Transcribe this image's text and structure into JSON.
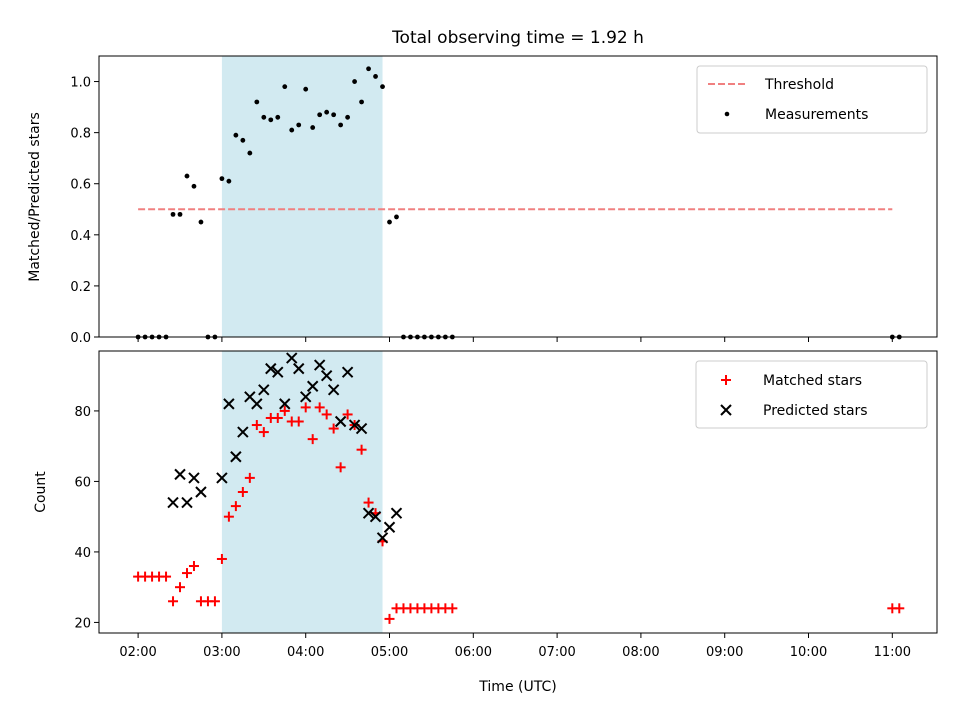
{
  "figure": {
    "title": "Total observing time = 1.92 h",
    "xlabel": "Time (UTC)"
  },
  "colors": {
    "threshold": "#f08080",
    "measurements": "#000000",
    "matched": "#ff0000",
    "predicted": "#000000",
    "shade": "#add8e6"
  },
  "chart_data": [
    {
      "type": "scatter",
      "ylabel": "Matched/Predicted stars",
      "xlim": [
        "01:32",
        "11:32"
      ],
      "ylim": [
        0,
        1.1
      ],
      "yticks": [
        0.0,
        0.2,
        0.4,
        0.6,
        0.8,
        1.0
      ],
      "ytick_labels": [
        "0.0",
        "0.2",
        "0.4",
        "0.6",
        "0.8",
        "1.0"
      ],
      "xticks": [
        "02:00",
        "03:00",
        "04:00",
        "05:00",
        "06:00",
        "07:00",
        "08:00",
        "09:00",
        "10:00",
        "11:00"
      ],
      "grid": false,
      "legend_position": "top-right",
      "shaded_interval": [
        "03:00",
        "04:55"
      ],
      "lines": [
        {
          "name": "Threshold",
          "style": "dashed",
          "x": [
            "02:00",
            "11:00"
          ],
          "y": [
            0.5,
            0.5
          ]
        }
      ],
      "series": [
        {
          "name": "Measurements",
          "marker": "dot",
          "x": [
            "02:00",
            "02:05",
            "02:10",
            "02:15",
            "02:20",
            "02:25",
            "02:30",
            "02:35",
            "02:40",
            "02:45",
            "02:50",
            "02:55",
            "03:00",
            "03:05",
            "03:10",
            "03:15",
            "03:20",
            "03:25",
            "03:30",
            "03:35",
            "03:40",
            "03:45",
            "03:50",
            "03:55",
            "04:00",
            "04:05",
            "04:10",
            "04:15",
            "04:20",
            "04:25",
            "04:30",
            "04:35",
            "04:40",
            "04:45",
            "04:50",
            "04:55",
            "05:00",
            "05:05",
            "05:10",
            "05:15",
            "05:20",
            "05:25",
            "05:30",
            "05:35",
            "05:40",
            "05:45",
            "11:00",
            "11:05"
          ],
          "y": [
            0.0,
            0.0,
            0.0,
            0.0,
            0.0,
            0.48,
            0.48,
            0.63,
            0.59,
            0.45,
            0.0,
            0.0,
            0.62,
            0.61,
            0.79,
            0.77,
            0.72,
            0.92,
            0.86,
            0.85,
            0.86,
            0.98,
            0.81,
            0.83,
            0.97,
            0.82,
            0.87,
            0.88,
            0.87,
            0.83,
            0.86,
            1.0,
            0.92,
            1.05,
            1.02,
            0.98,
            0.45,
            0.47,
            0.0,
            0.0,
            0.0,
            0.0,
            0.0,
            0.0,
            0.0,
            0.0,
            0.0,
            0.0
          ]
        }
      ]
    },
    {
      "type": "scatter",
      "ylabel": "Count",
      "xlim": [
        "01:32",
        "11:32"
      ],
      "ylim": [
        17,
        97
      ],
      "yticks": [
        20,
        40,
        60,
        80
      ],
      "ytick_labels": [
        "20",
        "40",
        "60",
        "80"
      ],
      "xticks": [
        "02:00",
        "03:00",
        "04:00",
        "05:00",
        "06:00",
        "07:00",
        "08:00",
        "09:00",
        "10:00",
        "11:00"
      ],
      "xtick_labels": [
        "02:00",
        "03:00",
        "04:00",
        "05:00",
        "06:00",
        "07:00",
        "08:00",
        "09:00",
        "10:00",
        "11:00"
      ],
      "grid": false,
      "legend_position": "top-right",
      "shaded_interval": [
        "03:00",
        "04:55"
      ],
      "series": [
        {
          "name": "Matched stars",
          "marker": "plus",
          "x": [
            "02:00",
            "02:05",
            "02:10",
            "02:15",
            "02:20",
            "02:25",
            "02:30",
            "02:35",
            "02:40",
            "02:45",
            "02:50",
            "02:55",
            "03:00",
            "03:05",
            "03:10",
            "03:15",
            "03:20",
            "03:25",
            "03:30",
            "03:35",
            "03:40",
            "03:45",
            "03:50",
            "03:55",
            "04:00",
            "04:05",
            "04:10",
            "04:15",
            "04:20",
            "04:25",
            "04:30",
            "04:35",
            "04:40",
            "04:45",
            "04:50",
            "04:55",
            "05:00",
            "05:05",
            "05:10",
            "05:15",
            "05:20",
            "05:25",
            "05:30",
            "05:35",
            "05:40",
            "05:45",
            "11:00",
            "11:05"
          ],
          "y": [
            33,
            33,
            33,
            33,
            33,
            26,
            30,
            34,
            36,
            26,
            26,
            26,
            38,
            50,
            53,
            57,
            61,
            76,
            74,
            78,
            78,
            80,
            77,
            77,
            81,
            72,
            81,
            79,
            75,
            64,
            79,
            76,
            69,
            54,
            51,
            43,
            21,
            24,
            24,
            24,
            24,
            24,
            24,
            24,
            24,
            24,
            24,
            24
          ]
        },
        {
          "name": "Predicted stars",
          "marker": "x",
          "x": [
            "02:25",
            "02:30",
            "02:35",
            "02:40",
            "02:45",
            "03:00",
            "03:05",
            "03:10",
            "03:15",
            "03:20",
            "03:25",
            "03:30",
            "03:35",
            "03:40",
            "03:45",
            "03:50",
            "03:55",
            "04:00",
            "04:05",
            "04:10",
            "04:15",
            "04:20",
            "04:25",
            "04:30",
            "04:35",
            "04:40",
            "04:45",
            "04:50",
            "04:55",
            "05:00",
            "05:05"
          ],
          "y": [
            54,
            62,
            54,
            61,
            57,
            61,
            82,
            67,
            74,
            84,
            82,
            86,
            92,
            91,
            82,
            95,
            92,
            84,
            87,
            93,
            90,
            86,
            77,
            91,
            76,
            75,
            51,
            50,
            44,
            47,
            51
          ]
        }
      ]
    }
  ]
}
